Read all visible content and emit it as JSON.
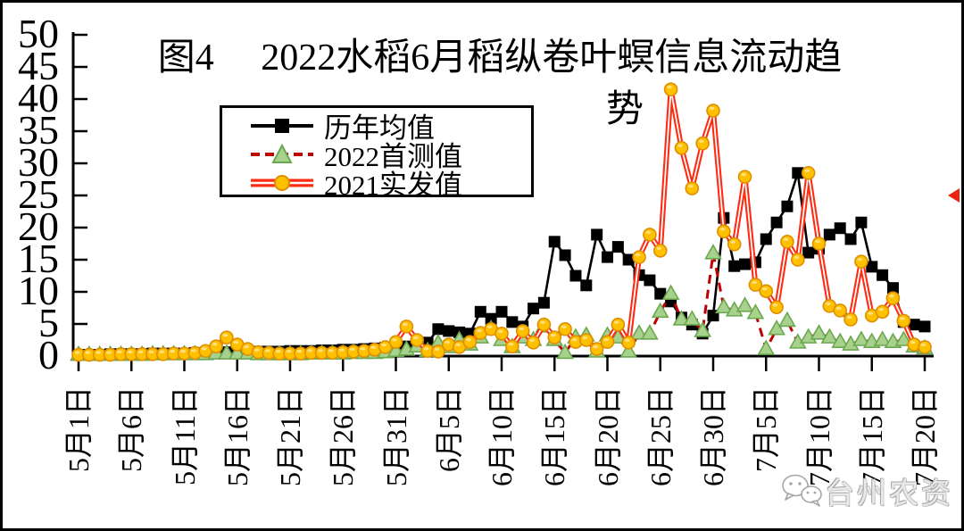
{
  "window": {
    "background": "#ffffff",
    "border_color": "#000000"
  },
  "chart_data": {
    "type": "line",
    "title": "图4　2022水稻6月稻纵卷叶螟信息流动趋势",
    "title_line1": "图4　 2022水稻6月稻纵卷叶螟信息流动趋",
    "title_line2": "势",
    "ylim": [
      0,
      50
    ],
    "y_ticks": [
      0,
      5,
      10,
      15,
      20,
      25,
      30,
      35,
      40,
      45,
      50
    ],
    "x_tick_labels": [
      "5月1日",
      "5月6日",
      "5月11日",
      "5月16日",
      "5月21日",
      "5月26日",
      "5月31日",
      "6月5日",
      "6月10日",
      "6月15日",
      "6月20日",
      "6月25日",
      "6月30日",
      "7月5日",
      "7月10日",
      "7月15日",
      "7月20日"
    ],
    "points_per_tick": 5,
    "days": 81,
    "grid": false,
    "legend_position": "upper-left-inside",
    "series": [
      {
        "id": "historical-average",
        "name": "历年均值",
        "line": "solid",
        "line_color": "#000000",
        "marker": "square",
        "marker_fill": "#000000",
        "marker_stroke": "#000000",
        "values": [
          0.2,
          0.2,
          0.2,
          0.3,
          0.3,
          0.3,
          0.3,
          0.4,
          0.4,
          0.4,
          0.4,
          0.5,
          0.5,
          0.5,
          0.6,
          0.6,
          0.6,
          0.7,
          0.7,
          0.7,
          0.8,
          0.8,
          0.8,
          0.9,
          0.9,
          1.0,
          1.0,
          1.1,
          1.2,
          1.3,
          1.4,
          1.5,
          1.8,
          2.1,
          4.2,
          3.9,
          3.7,
          3.5,
          6.9,
          5.8,
          6.9,
          5.3,
          4.6,
          7.4,
          8.3,
          17.8,
          15.7,
          12.5,
          11.0,
          18.9,
          15.4,
          17.0,
          15.0,
          12.6,
          11.8,
          9.7,
          8.5,
          6.0,
          4.9,
          3.5,
          6.3,
          21.5,
          14.0,
          14.3,
          14.6,
          18.2,
          20.8,
          23.3,
          28.5,
          16.1,
          16.7,
          18.9,
          19.9,
          18.2,
          20.8,
          13.9,
          12.6,
          10.6,
          5.3,
          4.9,
          4.6
        ]
      },
      {
        "id": "first-survey-2022",
        "name": "2022首测值",
        "line": "dashed",
        "line_color": "#c00000",
        "marker": "triangle",
        "marker_fill": "#a9d18e",
        "marker_stroke": "#6aa84f",
        "values": [
          0.2,
          0.2,
          0.2,
          0.2,
          0.2,
          0.2,
          0.2,
          0.3,
          0.3,
          0.3,
          0.3,
          0.3,
          0.3,
          0.4,
          0.4,
          0.4,
          0.4,
          0.3,
          0.3,
          0.3,
          0.3,
          0.3,
          0.4,
          0.4,
          0.4,
          0.4,
          0.5,
          0.5,
          0.5,
          0.6,
          0.8,
          1.0,
          1.5,
          0.8,
          2.0,
          1.4,
          2.5,
          1.8,
          2.9,
          4.2,
          2.5,
          1.4,
          2.9,
          2.5,
          4.6,
          2.5,
          0.5,
          2.9,
          3.2,
          0.7,
          3.2,
          2.9,
          0.7,
          3.5,
          3.5,
          6.9,
          9.7,
          5.7,
          5.7,
          3.9,
          16.0,
          7.6,
          7.1,
          7.8,
          6.7,
          1.1,
          4.2,
          5.5,
          2.1,
          2.9,
          3.5,
          2.9,
          2.2,
          1.8,
          2.5,
          2.2,
          2.5,
          2.2,
          2.5,
          1.5,
          1.2
        ]
      },
      {
        "id": "actual-2021",
        "name": "2021实发值",
        "line": "double",
        "line_color": "#fe2c12",
        "line_inner_color": "#ffffff",
        "marker": "circle",
        "marker_fill": "#ffc000",
        "marker_stroke": "#dd8f00",
        "values": [
          0.2,
          0.2,
          0.2,
          0.2,
          0.3,
          0.3,
          0.3,
          0.3,
          0.3,
          0.4,
          0.4,
          0.5,
          0.8,
          1.5,
          2.9,
          1.8,
          1.1,
          0.6,
          0.5,
          0.4,
          0.4,
          0.4,
          0.5,
          0.5,
          0.5,
          0.6,
          0.7,
          0.8,
          1.0,
          1.4,
          2.2,
          4.6,
          2.5,
          0.8,
          0.7,
          1.8,
          1.4,
          2.2,
          3.6,
          4.2,
          3.5,
          1.5,
          3.9,
          2.1,
          4.9,
          2.9,
          4.2,
          2.2,
          2.5,
          1.1,
          2.2,
          4.9,
          2.1,
          15.4,
          18.9,
          16.4,
          41.5,
          32.4,
          26.1,
          33.1,
          38.2,
          19.4,
          17.4,
          27.9,
          11.1,
          10.1,
          7.6,
          17.8,
          15.0,
          28.5,
          17.5,
          7.8,
          7.1,
          5.7,
          14.7,
          6.3,
          6.9,
          9.0,
          5.5,
          1.8,
          1.4
        ]
      }
    ]
  },
  "legend": {
    "items": [
      "历年均值",
      "2022首测值",
      "2021实发值"
    ]
  },
  "watermark": {
    "text": "台州农资",
    "icon": "wechat-icon",
    "color": "#a6a6a6"
  },
  "annotations": {
    "right_edge_arrow_color": "#e8260f"
  }
}
